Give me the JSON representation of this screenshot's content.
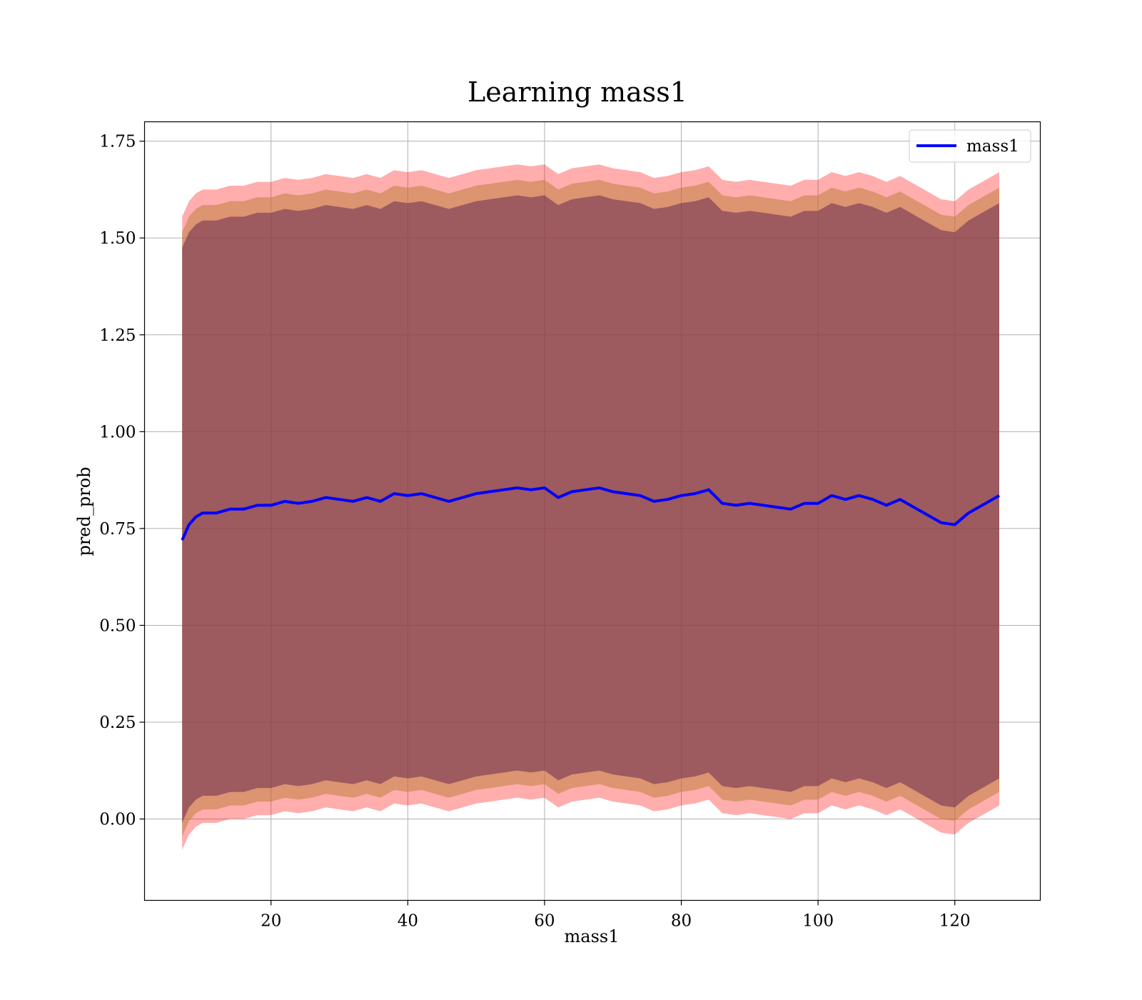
{
  "chart_data": {
    "type": "line",
    "title": "Learning mass1",
    "xlabel": "mass1",
    "ylabel": "pred_prob",
    "xlim": [
      1.5,
      132.5
    ],
    "ylim": [
      -0.21,
      1.8
    ],
    "xticks": [
      20,
      40,
      60,
      80,
      100,
      120
    ],
    "yticks": [
      0.0,
      0.25,
      0.5,
      0.75,
      1.0,
      1.25,
      1.5,
      1.75
    ],
    "ytick_labels": [
      "0.00",
      "0.25",
      "0.50",
      "0.75",
      "1.00",
      "1.25",
      "1.50",
      "1.75"
    ],
    "grid": true,
    "legend": {
      "position": "top-right",
      "entries": [
        "mass1"
      ]
    },
    "colors": {
      "line": "#0000ff",
      "band_outer": "#ff0000",
      "band_middle": "#c08040",
      "band_inner": "#6a2a50"
    },
    "series": [
      {
        "name": "mass1",
        "x": [
          7,
          8,
          9,
          10,
          12,
          14,
          16,
          18,
          20,
          22,
          24,
          26,
          28,
          30,
          32,
          34,
          36,
          38,
          40,
          42,
          44,
          46,
          48,
          50,
          52,
          54,
          56,
          58,
          60,
          62,
          64,
          66,
          68,
          70,
          72,
          74,
          76,
          78,
          80,
          82,
          84,
          86,
          88,
          90,
          92,
          94,
          96,
          98,
          100,
          102,
          104,
          106,
          108,
          110,
          112,
          114,
          116,
          118,
          120,
          122,
          124,
          126.5
        ],
        "y": [
          0.72,
          0.76,
          0.78,
          0.79,
          0.79,
          0.8,
          0.8,
          0.81,
          0.81,
          0.82,
          0.815,
          0.82,
          0.83,
          0.825,
          0.82,
          0.83,
          0.82,
          0.84,
          0.835,
          0.84,
          0.83,
          0.82,
          0.83,
          0.84,
          0.845,
          0.85,
          0.855,
          0.85,
          0.855,
          0.83,
          0.845,
          0.85,
          0.855,
          0.845,
          0.84,
          0.835,
          0.82,
          0.825,
          0.835,
          0.84,
          0.85,
          0.815,
          0.81,
          0.815,
          0.81,
          0.805,
          0.8,
          0.815,
          0.815,
          0.835,
          0.825,
          0.835,
          0.825,
          0.81,
          0.825,
          0.805,
          0.785,
          0.765,
          0.76,
          0.79,
          0.81,
          0.835
        ],
        "bands": [
          {
            "name": "outer",
            "upper_offset": 0.835,
            "lower_offset": 0.8
          },
          {
            "name": "middle",
            "upper_offset": 0.795,
            "lower_offset": 0.765
          },
          {
            "name": "inner",
            "upper_offset": 0.755,
            "lower_offset": 0.73
          }
        ]
      }
    ]
  }
}
